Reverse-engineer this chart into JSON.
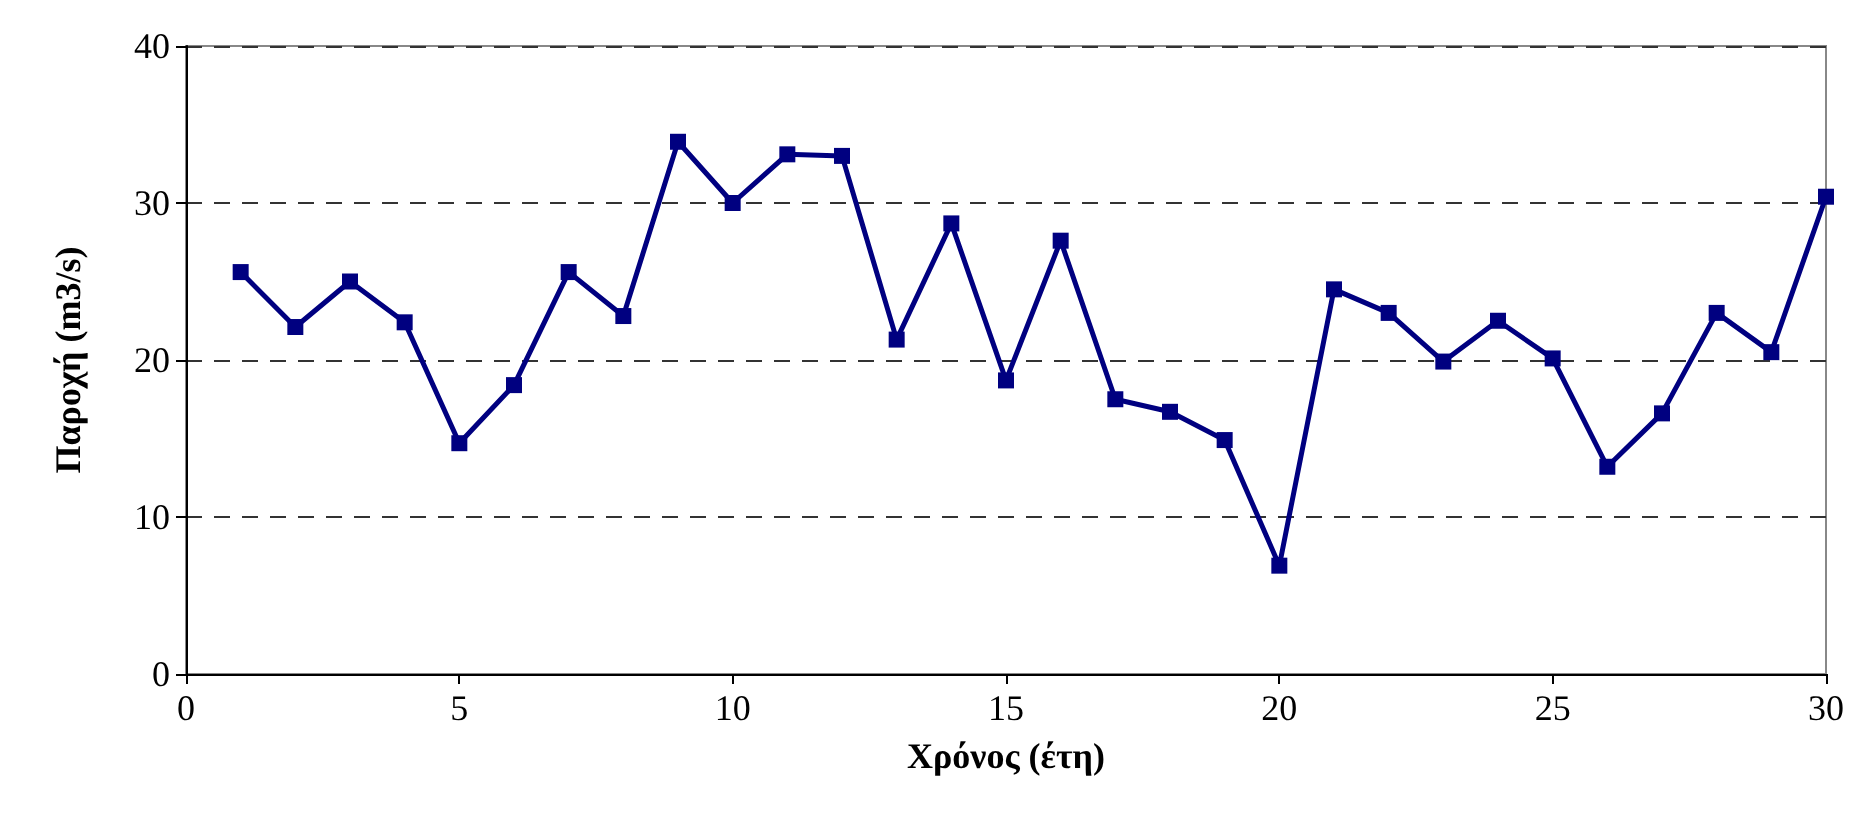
{
  "chart_data": {
    "type": "line",
    "xlabel": "Χρόνος (έτη)",
    "ylabel": "Παροχή (m3/s)",
    "x": [
      1,
      2,
      3,
      4,
      5,
      6,
      7,
      8,
      9,
      10,
      11,
      12,
      13,
      14,
      15,
      16,
      17,
      18,
      19,
      20,
      21,
      22,
      23,
      24,
      25,
      26,
      27,
      28,
      29,
      30
    ],
    "series": [
      {
        "color": "#000080",
        "values": [
          25.6,
          22.1,
          25.0,
          22.4,
          14.7,
          18.4,
          25.6,
          22.8,
          33.9,
          30.0,
          33.1,
          33.0,
          21.3,
          28.7,
          18.7,
          27.6,
          17.5,
          16.7,
          14.9,
          6.9,
          24.5,
          23.0,
          19.9,
          22.5,
          20.1,
          13.2,
          16.6,
          23.0,
          20.5,
          30.4
        ]
      }
    ],
    "xlim": [
      0,
      30
    ],
    "xticks": [
      0,
      5,
      10,
      15,
      20,
      25,
      30
    ],
    "ylim": [
      0,
      40
    ],
    "yticks": [
      0,
      10,
      20,
      30,
      40
    ],
    "grid": "y",
    "marker": "square",
    "line_style": "solid"
  }
}
